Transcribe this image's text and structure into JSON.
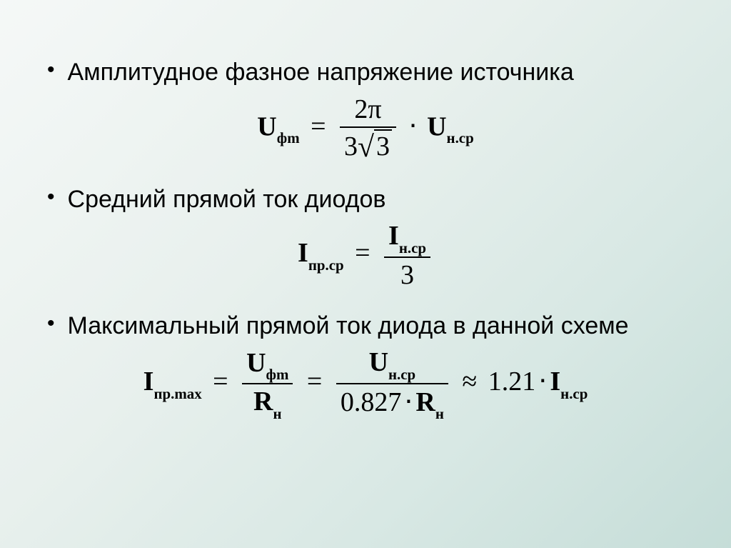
{
  "background": {
    "gradient_start": "#f5f8f7",
    "gradient_end": "#c5ddd8"
  },
  "text_color": "#000000",
  "bullet_fontsize": 34,
  "formula_fontsize": 38,
  "formula_font": "Times New Roman",
  "body_font": "Arial",
  "items": [
    {
      "text": "Амплитудное фазное напряжение источника",
      "formula": {
        "lhs_var": "U",
        "lhs_sub": "фm",
        "rhs": {
          "frac_num": "2π",
          "frac_den_a": "3",
          "frac_den_sqrt": "3",
          "mult_var": "U",
          "mult_sub": "н.ср"
        }
      }
    },
    {
      "text": "Средний прямой ток диодов",
      "formula": {
        "lhs_var": "I",
        "lhs_sub": "пр.ср",
        "rhs": {
          "frac_num_var": "I",
          "frac_num_sub": "н.ср",
          "frac_den": "3"
        }
      }
    },
    {
      "text": "Максимальный прямой ток диода в данной схеме",
      "formula": {
        "lhs_var": "I",
        "lhs_sub": "пр.max",
        "mid1": {
          "num_var": "U",
          "num_sub": "фm",
          "den_var": "R",
          "den_sub": "н"
        },
        "mid2": {
          "num_var": "U",
          "num_sub": "н.ср",
          "den_a": "0.827",
          "den_var": "R",
          "den_sub": "н"
        },
        "approx": "≈",
        "coef": "1.21",
        "tail_var": "I",
        "tail_sub": "н.ср"
      }
    }
  ]
}
